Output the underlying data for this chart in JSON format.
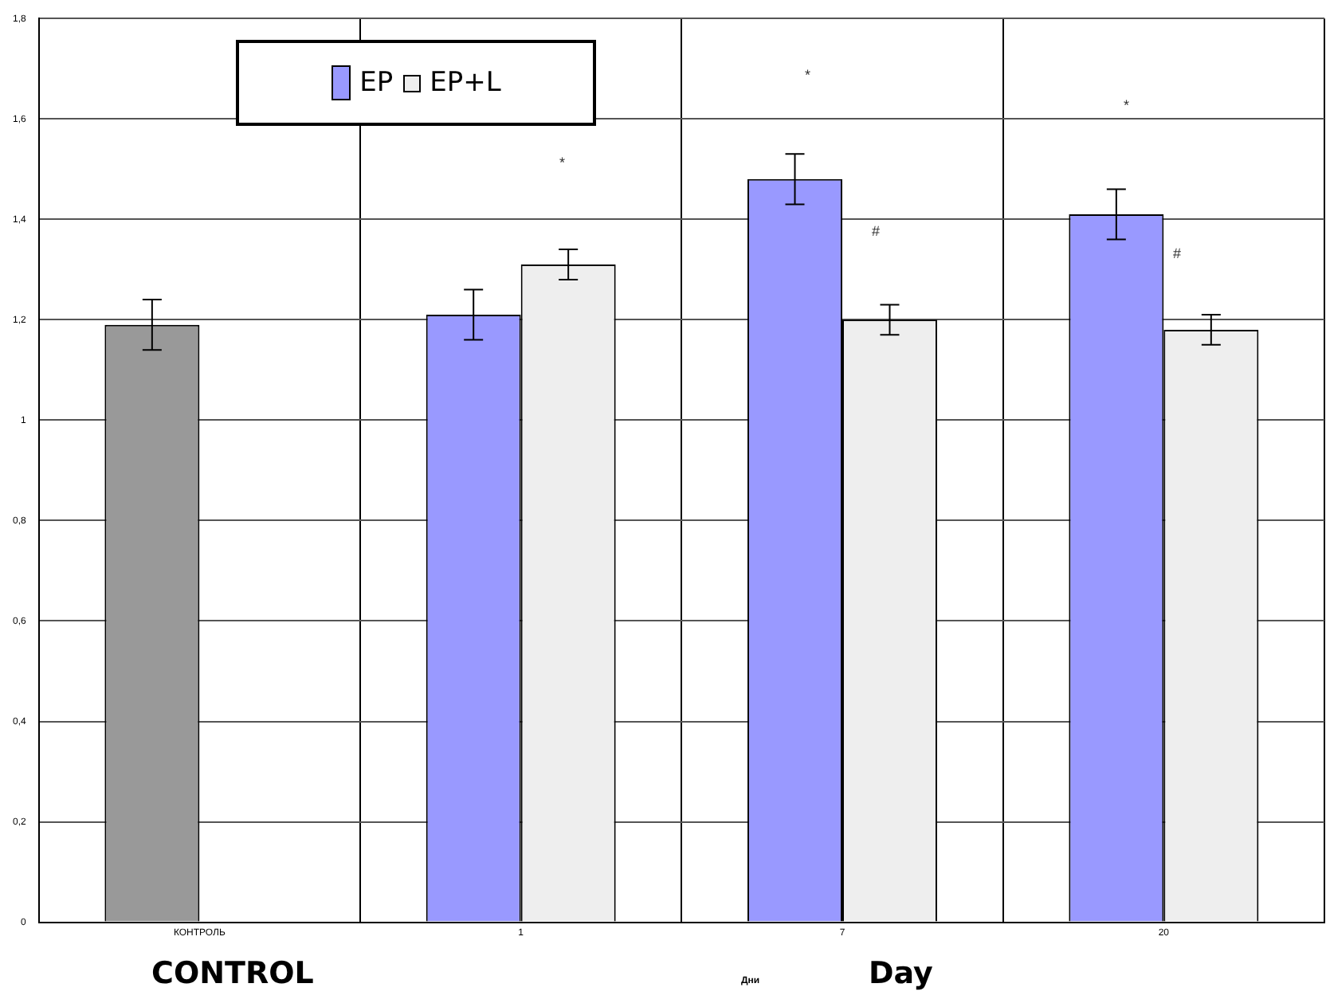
{
  "chart_data": {
    "type": "bar",
    "xlabel": "Дни",
    "categories": [
      "КОНТРОЛЬ",
      "1",
      "7",
      "20"
    ],
    "series": [
      {
        "name": "EP",
        "color": "#9999ff",
        "colors": [
          "#999999",
          "#9999ff",
          "#9999ff",
          "#9999ff"
        ],
        "values": [
          1.19,
          1.21,
          1.48,
          1.41
        ],
        "errors": [
          0.05,
          0.05,
          0.05,
          0.05
        ]
      },
      {
        "name": "EP+L",
        "color": "#eeeeee",
        "values": [
          null,
          1.31,
          1.2,
          1.18
        ],
        "errors": [
          null,
          0.03,
          0.03,
          0.03
        ]
      }
    ],
    "ylim": [
      0,
      1.8
    ],
    "yticks": [
      {
        "value": 0,
        "label": "0"
      },
      {
        "value": 0.2,
        "label": "0,2"
      },
      {
        "value": 0.4,
        "label": "0,4"
      },
      {
        "value": 0.6,
        "label": "0,6"
      },
      {
        "value": 0.8,
        "label": "0,8"
      },
      {
        "value": 1,
        "label": "1"
      },
      {
        "value": 1.2,
        "label": "1,2"
      },
      {
        "value": 1.4,
        "label": "1,4"
      },
      {
        "value": 1.6,
        "label": "1,6"
      },
      {
        "value": 1.8,
        "label": "1,8"
      }
    ],
    "grid": true,
    "legend": "top left",
    "annotations": [
      "*",
      "*",
      "#",
      "*",
      "#",
      "CONTROL",
      "Day"
    ]
  }
}
